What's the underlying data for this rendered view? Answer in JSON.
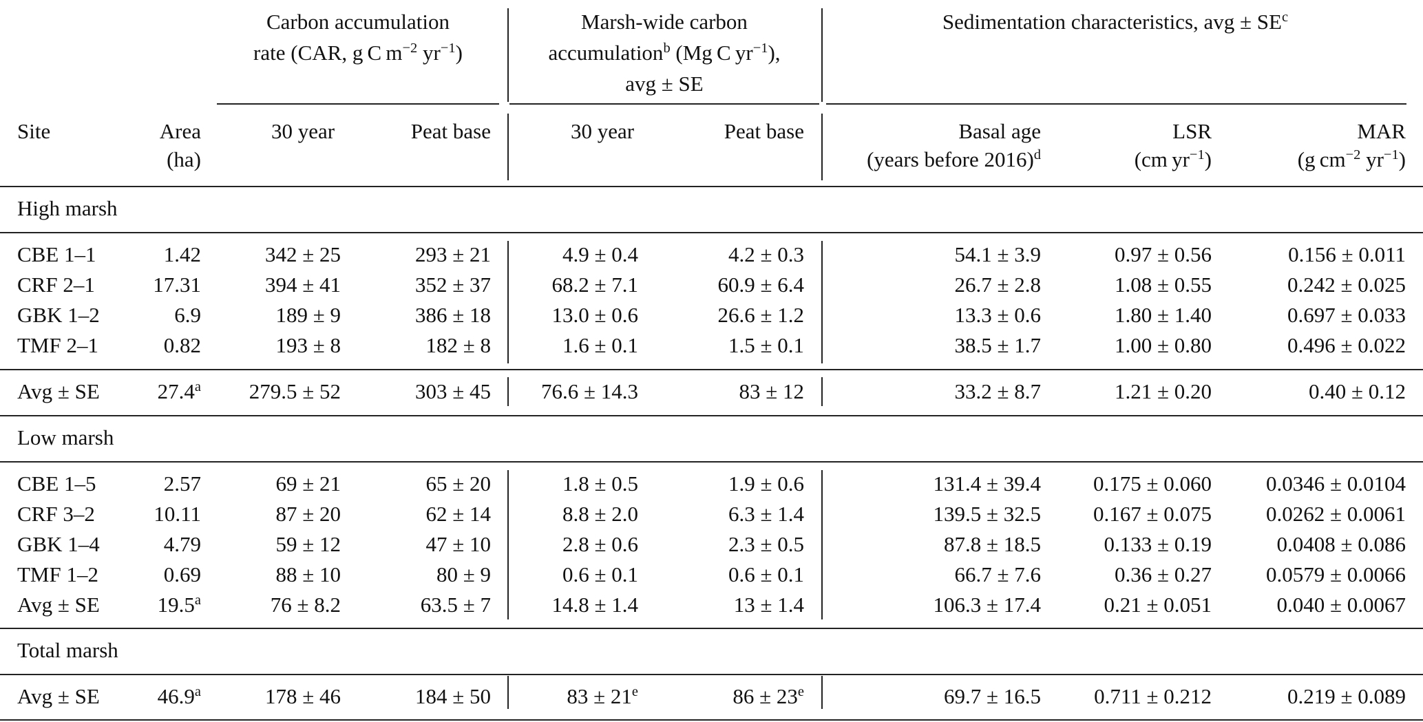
{
  "header": {
    "car_group": "Carbon accumulation rate (CAR, g C m−2 yr−1)",
    "car_line1": "Carbon accumulation",
    "car_line2_pre": "rate (CAR, g C m",
    "car_sup1": "−2",
    "car_line2_mid": " yr",
    "car_sup2": "−1",
    "car_line2_post": ")",
    "mw_line1": "Marsh-wide carbon",
    "mw_line2_pre": "accumulation",
    "mw_sup_note": "b",
    "mw_line2_mid": " (Mg C yr",
    "mw_sup2": "−1",
    "mw_line2_post": "),",
    "mw_line3": "avg ± SE",
    "sed_pre": "Sedimentation characteristics, avg ± SE",
    "sed_sup": "c",
    "site": "Site",
    "area_1": "Area",
    "area_2": "(ha)",
    "car_30": "30 year",
    "car_peat": "Peat base",
    "mw_30": "30 year",
    "mw_peat": "Peat base",
    "basal_1": "Basal age",
    "basal_2_pre": "(years before 2016)",
    "basal_sup": "d",
    "lsr_1": "LSR",
    "lsr_2_pre": "(cm yr",
    "lsr_sup": "−1",
    "lsr_2_post": ")",
    "mar_1": "MAR",
    "mar_2_pre": "(g cm",
    "mar_sup1": "−2",
    "mar_2_mid": " yr",
    "mar_sup2": "−1",
    "mar_2_post": ")"
  },
  "sections": {
    "high": "High marsh",
    "low": "Low marsh",
    "total": "Total marsh"
  },
  "high_rows": [
    {
      "site": "CBE 1–1",
      "area": "1.42",
      "car30": "342 ± 25",
      "carpeat": "293 ± 21",
      "mw30": "4.9 ± 0.4",
      "mwpeat": "4.2 ± 0.3",
      "basal": "54.1 ± 3.9",
      "lsr": "0.97 ± 0.56",
      "mar": "0.156 ± 0.011"
    },
    {
      "site": "CRF 2–1",
      "area": "17.31",
      "car30": "394 ± 41",
      "carpeat": "352 ± 37",
      "mw30": "68.2 ± 7.1",
      "mwpeat": "60.9 ± 6.4",
      "basal": "26.7 ± 2.8",
      "lsr": "1.08 ± 0.55",
      "mar": "0.242 ± 0.025"
    },
    {
      "site": "GBK 1–2",
      "area": "6.9",
      "car30": "189 ± 9",
      "carpeat": "386 ± 18",
      "mw30": "13.0 ± 0.6",
      "mwpeat": "26.6 ± 1.2",
      "basal": "13.3 ± 0.6",
      "lsr": "1.80 ± 1.40",
      "mar": "0.697 ± 0.033"
    },
    {
      "site": "TMF 2–1",
      "area": "0.82",
      "car30": "193 ± 8",
      "carpeat": "182 ± 8",
      "mw30": "1.6 ± 0.1",
      "mwpeat": "1.5 ± 0.1",
      "basal": "38.5 ± 1.7",
      "lsr": "1.00 ± 0.80",
      "mar": "0.496 ± 0.022"
    }
  ],
  "high_avg": {
    "site": "Avg ± SE",
    "area": "27.4",
    "area_sup": "a",
    "car30": "279.5 ± 52",
    "carpeat": "303 ± 45",
    "mw30": "76.6 ± 14.3",
    "mwpeat": "83 ± 12",
    "basal": "33.2 ± 8.7",
    "lsr": "1.21 ± 0.20",
    "mar": "0.40 ± 0.12"
  },
  "low_rows": [
    {
      "site": "CBE 1–5",
      "area": "2.57",
      "car30": "69 ± 21",
      "carpeat": "65 ± 20",
      "mw30": "1.8 ± 0.5",
      "mwpeat": "1.9 ± 0.6",
      "basal": "131.4 ± 39.4",
      "lsr": "0.175 ± 0.060",
      "mar": "0.0346 ± 0.0104"
    },
    {
      "site": "CRF 3–2",
      "area": "10.11",
      "car30": "87 ± 20",
      "carpeat": "62 ± 14",
      "mw30": "8.8 ± 2.0",
      "mwpeat": "6.3 ± 1.4",
      "basal": "139.5 ± 32.5",
      "lsr": "0.167 ± 0.075",
      "mar": "0.0262 ± 0.0061"
    },
    {
      "site": "GBK 1–4",
      "area": "4.79",
      "car30": "59 ± 12",
      "carpeat": "47 ± 10",
      "mw30": "2.8 ± 0.6",
      "mwpeat": "2.3 ± 0.5",
      "basal": "87.8 ± 18.5",
      "lsr": "0.133 ± 0.19",
      "mar": "0.0408 ± 0.086"
    },
    {
      "site": "TMF 1–2",
      "area": "0.69",
      "car30": "88 ± 10",
      "carpeat": "80 ± 9",
      "mw30": "0.6 ± 0.1",
      "mwpeat": "0.6 ± 0.1",
      "basal": "66.7 ± 7.6",
      "lsr": "0.36 ± 0.27",
      "mar": "0.0579 ± 0.0066"
    }
  ],
  "low_avg": {
    "site": "Avg ± SE",
    "area": "19.5",
    "area_sup": "a",
    "car30": "76 ± 8.2",
    "carpeat": "63.5 ± 7",
    "mw30": "14.8 ± 1.4",
    "mwpeat": "13 ± 1.4",
    "basal": "106.3 ± 17.4",
    "lsr": "0.21 ± 0.051",
    "mar": "0.040 ± 0.0067"
  },
  "total_avg": {
    "site": "Avg ± SE",
    "area": "46.9",
    "area_sup": "a",
    "car30": "178 ± 46",
    "carpeat": "184 ± 50",
    "mw30": "83 ± 21",
    "mw30_sup": "e",
    "mwpeat": "86 ± 23",
    "mwpeat_sup": "e",
    "basal": "69.7 ± 16.5",
    "lsr": "0.711 ± 0.212",
    "mar": "0.219 ± 0.089"
  }
}
